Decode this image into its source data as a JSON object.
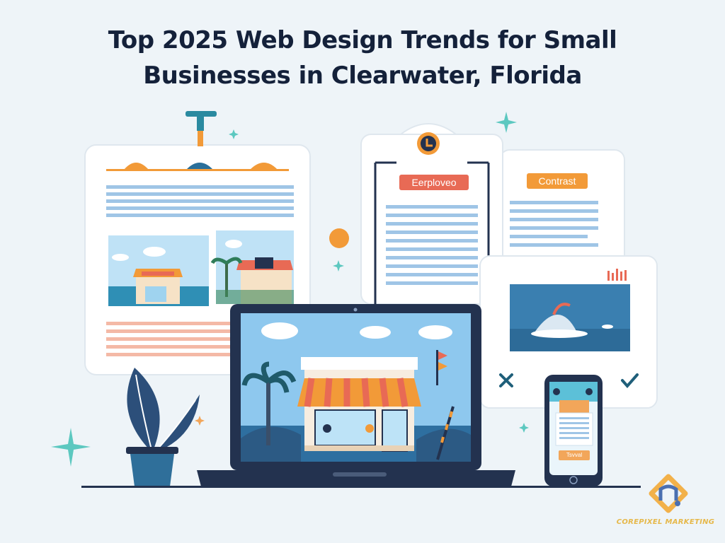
{
  "title": {
    "line1": "Top 2025 Web Design Trends for Small",
    "line2": "Businesses in Clearwater, Florida"
  },
  "cards": {
    "left_tag": "Eerplovеo",
    "right_tag": "Contrast"
  },
  "phone": {
    "button_label": "Tsvval"
  },
  "brand": {
    "name": "COREPIXEL MARKETING"
  },
  "colors": {
    "background": "#eef4f8",
    "title": "#14213a",
    "navy": "#23324f",
    "orange": "#f29a38",
    "coral": "#e86a55",
    "sky": "#5fb0e6",
    "teal": "#5cc8c0"
  },
  "icons": [
    "clock-icon",
    "x-icon",
    "check-icon",
    "sparkle-icon",
    "plant-icon",
    "brand-logo-icon"
  ]
}
